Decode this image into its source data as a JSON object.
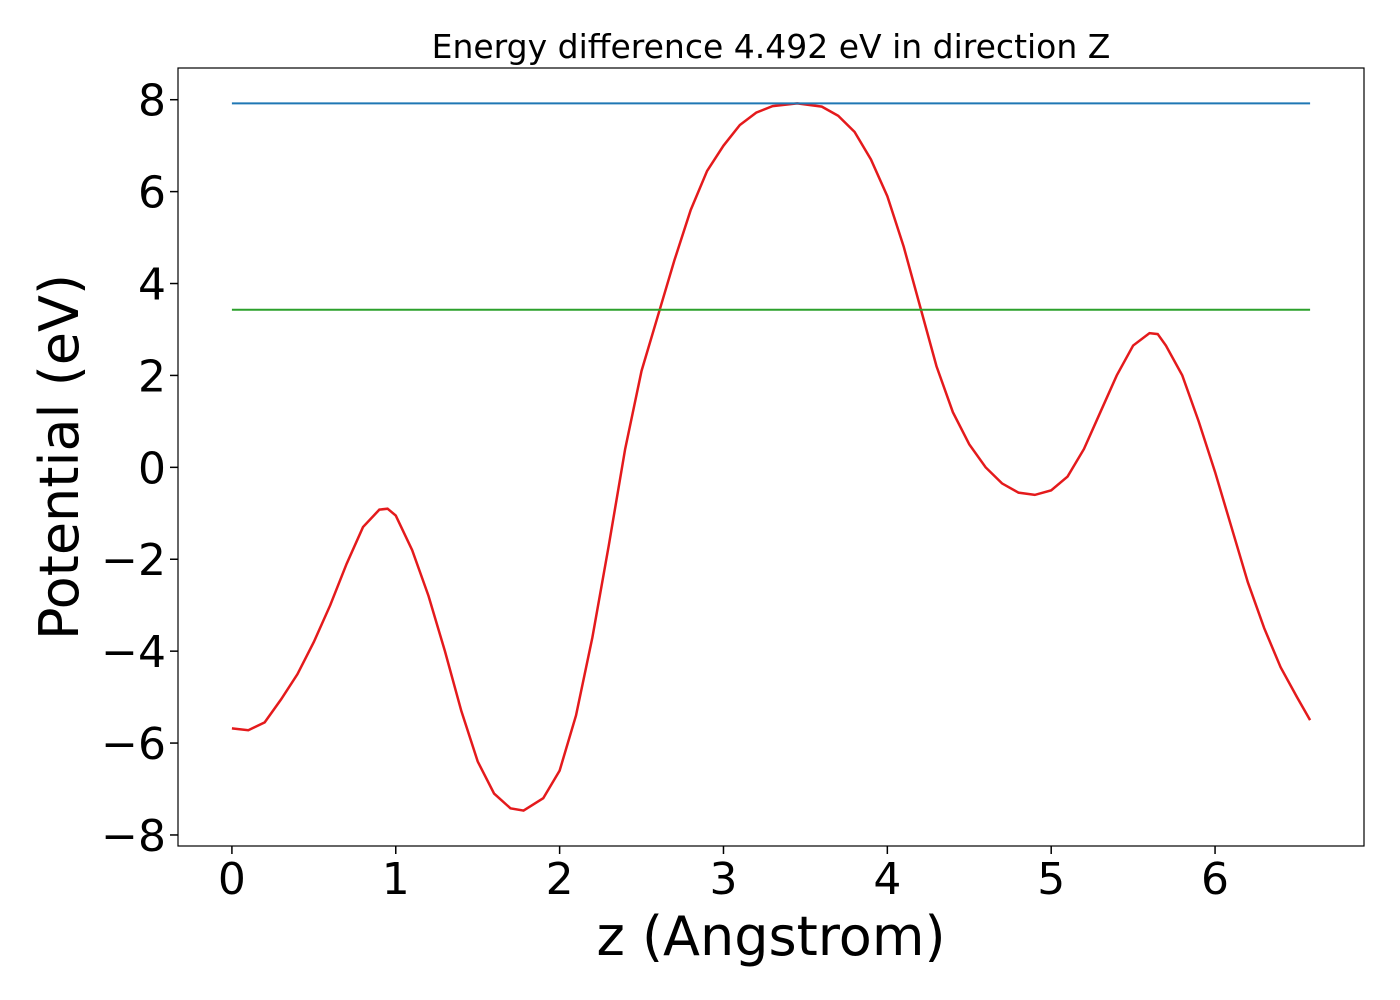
{
  "chart_data": {
    "type": "line",
    "title": "Energy difference 4.492 eV in direction Z",
    "xlabel": "z (Angstrom)",
    "ylabel": "Potential (eV)",
    "xlim": [
      -0.329,
      6.909
    ],
    "ylim": [
      -8.24,
      8.69
    ],
    "xticks": [
      0,
      1,
      2,
      3,
      4,
      5,
      6
    ],
    "yticks": [
      {
        "value": -8,
        "label": "−8"
      },
      {
        "value": -6,
        "label": "−6"
      },
      {
        "value": -4,
        "label": "−4"
      },
      {
        "value": -2,
        "label": "−2"
      },
      0,
      2,
      4,
      6,
      8
    ],
    "series": [
      {
        "color": "#e41a1c",
        "x": [
          0,
          0.1,
          0.2,
          0.3,
          0.4,
          0.5,
          0.6,
          0.7,
          0.8,
          0.9,
          0.95,
          1.0,
          1.1,
          1.2,
          1.3,
          1.4,
          1.5,
          1.6,
          1.7,
          1.78,
          1.9,
          2.0,
          2.1,
          2.2,
          2.3,
          2.4,
          2.5,
          2.6,
          2.7,
          2.8,
          2.9,
          3.0,
          3.1,
          3.2,
          3.3,
          3.45,
          3.6,
          3.7,
          3.8,
          3.9,
          4.0,
          4.1,
          4.2,
          4.3,
          4.4,
          4.5,
          4.6,
          4.7,
          4.8,
          4.9,
          5.0,
          5.1,
          5.2,
          5.3,
          5.4,
          5.5,
          5.6,
          5.65,
          5.7,
          5.8,
          5.9,
          6.0,
          6.1,
          6.2,
          6.3,
          6.4,
          6.5,
          6.58
        ],
        "values": [
          -5.68,
          -5.72,
          -5.55,
          -5.05,
          -4.5,
          -3.8,
          -3.0,
          -2.1,
          -1.3,
          -0.92,
          -0.9,
          -1.05,
          -1.8,
          -2.8,
          -4.0,
          -5.3,
          -6.4,
          -7.1,
          -7.42,
          -7.47,
          -7.2,
          -6.6,
          -5.4,
          -3.7,
          -1.7,
          0.4,
          2.1,
          3.3,
          4.5,
          5.6,
          6.45,
          7.0,
          7.45,
          7.72,
          7.86,
          7.92,
          7.85,
          7.65,
          7.3,
          6.7,
          5.9,
          4.8,
          3.5,
          2.2,
          1.2,
          0.5,
          0.0,
          -0.35,
          -0.55,
          -0.6,
          -0.5,
          -0.2,
          0.4,
          1.2,
          2.0,
          2.65,
          2.92,
          2.9,
          2.65,
          2.0,
          1.0,
          -0.1,
          -1.3,
          -2.5,
          -3.5,
          -4.35,
          -5.0,
          -5.5
        ]
      },
      {
        "color": "#1f77b4",
        "x": [
          0,
          6.58
        ],
        "values": [
          7.92,
          7.92
        ]
      },
      {
        "color": "#2ca02c",
        "x": [
          0,
          6.58
        ],
        "values": [
          3.43,
          3.43
        ]
      }
    ]
  }
}
